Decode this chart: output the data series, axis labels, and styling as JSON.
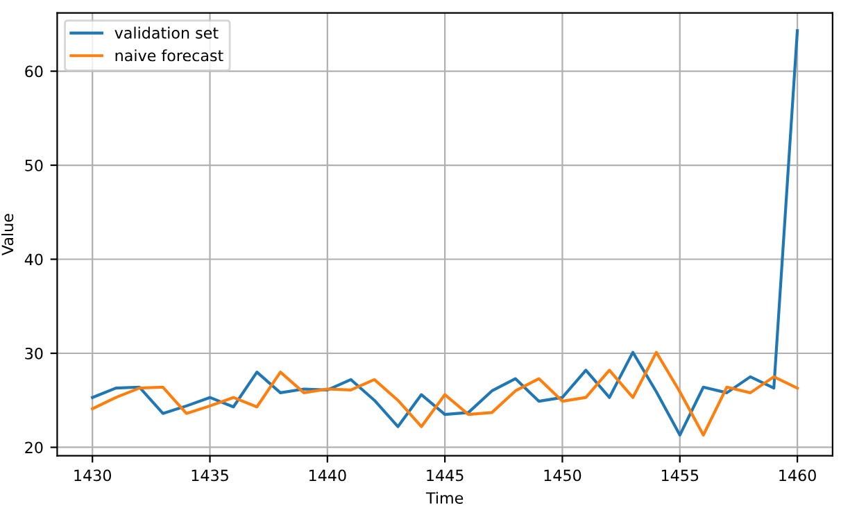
{
  "chart_data": {
    "type": "line",
    "xlabel": "Time",
    "ylabel": "Value",
    "x": [
      1430,
      1431,
      1432,
      1433,
      1434,
      1435,
      1436,
      1437,
      1438,
      1439,
      1440,
      1441,
      1442,
      1443,
      1444,
      1445,
      1446,
      1447,
      1448,
      1449,
      1450,
      1451,
      1452,
      1453,
      1454,
      1455,
      1456,
      1457,
      1458,
      1459,
      1460
    ],
    "series": [
      {
        "name": "validation set",
        "color": "#1f77b4",
        "values": [
          25.3,
          26.3,
          26.4,
          23.6,
          24.4,
          25.3,
          24.3,
          28.0,
          25.8,
          26.2,
          26.1,
          27.2,
          25.0,
          22.2,
          25.6,
          23.5,
          23.7,
          26.0,
          27.3,
          24.9,
          25.3,
          28.2,
          25.3,
          30.1,
          25.9,
          21.3,
          26.4,
          25.8,
          27.5,
          26.3,
          64.3
        ]
      },
      {
        "name": "naive forecast",
        "color": "#ff7f0e",
        "values": [
          24.1,
          25.3,
          26.3,
          26.4,
          23.6,
          24.4,
          25.3,
          24.3,
          28.0,
          25.8,
          26.2,
          26.1,
          27.2,
          25.0,
          22.2,
          25.6,
          23.5,
          23.7,
          26.0,
          27.3,
          24.9,
          25.3,
          28.2,
          25.3,
          30.1,
          25.9,
          21.3,
          26.4,
          25.8,
          27.5,
          26.3
        ]
      }
    ],
    "xlim": [
      1428.5,
      1461.5
    ],
    "xticks": [
      1430,
      1435,
      1440,
      1445,
      1450,
      1455,
      1460
    ],
    "ylim": [
      19.1,
      66.2
    ],
    "yticks": [
      20,
      30,
      40,
      50,
      60
    ],
    "grid": true,
    "legend": "top left"
  }
}
